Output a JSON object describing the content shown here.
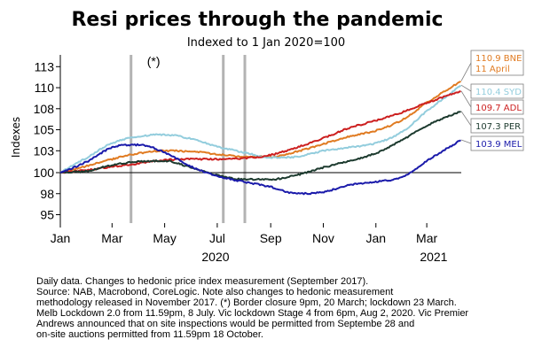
{
  "chart_data": {
    "type": "line",
    "title": "Resi prices through the pandemic",
    "subtitle": "Indexed to 1 Jan 2020=100",
    "ylabel": "Indexes",
    "ylim": [
      94,
      114
    ],
    "yticks": [
      "113",
      "110",
      "108",
      "105",
      "103",
      "100",
      "98",
      "95"
    ],
    "ytick_values": [
      112.6,
      110.1,
      107.6,
      105.1,
      102.6,
      100.0,
      97.5,
      95.0
    ],
    "x_start": "2020-01-01",
    "x_end": "2021-04-10",
    "xticks": [
      {
        "label": "Jan",
        "date": "2020-01-01"
      },
      {
        "label": "Mar",
        "date": "2020-03-01"
      },
      {
        "label": "May",
        "date": "2020-05-01"
      },
      {
        "label": "Jul",
        "date": "2020-07-01"
      },
      {
        "label": "Sep",
        "date": "2020-09-01"
      },
      {
        "label": "Nov",
        "date": "2020-11-01"
      },
      {
        "label": "Jan",
        "date": "2021-01-01"
      },
      {
        "label": "Mar",
        "date": "2021-03-01"
      }
    ],
    "year_labels": [
      {
        "label": "2020",
        "date": "2020-06-29"
      },
      {
        "label": "2021",
        "date": "2021-03-09"
      }
    ],
    "baseline": 100,
    "event_lines": [
      "2020-03-23",
      "2020-07-08",
      "2020-08-02"
    ],
    "event_note": "(*)",
    "series": [
      {
        "name": "BNE",
        "color": "#e07b22",
        "legend": [
          "110.9 BNE",
          "11 April"
        ],
        "points": [
          [
            "2020-01-01",
            100.0
          ],
          [
            "2020-02-01",
            100.8
          ],
          [
            "2020-03-01",
            101.6
          ],
          [
            "2020-04-01",
            102.3
          ],
          [
            "2020-05-01",
            102.6
          ],
          [
            "2020-06-01",
            102.5
          ],
          [
            "2020-07-01",
            102.2
          ],
          [
            "2020-08-01",
            101.9
          ],
          [
            "2020-09-01",
            101.9
          ],
          [
            "2020-10-01",
            102.5
          ],
          [
            "2020-11-01",
            103.4
          ],
          [
            "2020-12-01",
            104.3
          ],
          [
            "2021-01-01",
            105.0
          ],
          [
            "2021-02-01",
            106.3
          ],
          [
            "2021-03-01",
            108.3
          ],
          [
            "2021-04-10",
            110.9
          ]
        ]
      },
      {
        "name": "SYD",
        "color": "#93cddd",
        "legend": [
          "110.4 SYD"
        ],
        "points": [
          [
            "2020-01-01",
            100.0
          ],
          [
            "2020-02-01",
            101.8
          ],
          [
            "2020-03-01",
            103.5
          ],
          [
            "2020-04-01",
            104.3
          ],
          [
            "2020-05-01",
            104.5
          ],
          [
            "2020-06-01",
            104.0
          ],
          [
            "2020-07-01",
            103.1
          ],
          [
            "2020-08-01",
            102.4
          ],
          [
            "2020-09-01",
            101.8
          ],
          [
            "2020-10-01",
            101.9
          ],
          [
            "2020-11-01",
            102.6
          ],
          [
            "2020-12-01",
            103.0
          ],
          [
            "2021-01-01",
            103.5
          ],
          [
            "2021-02-01",
            104.9
          ],
          [
            "2021-03-01",
            107.3
          ],
          [
            "2021-04-10",
            110.4
          ]
        ]
      },
      {
        "name": "ADL",
        "color": "#cc1f1f",
        "legend": [
          "109.7 ADL"
        ],
        "points": [
          [
            "2020-01-01",
            100.0
          ],
          [
            "2020-02-01",
            100.3
          ],
          [
            "2020-03-01",
            100.7
          ],
          [
            "2020-04-01",
            101.1
          ],
          [
            "2020-05-01",
            101.5
          ],
          [
            "2020-06-01",
            101.6
          ],
          [
            "2020-07-01",
            101.6
          ],
          [
            "2020-08-01",
            101.7
          ],
          [
            "2020-09-01",
            102.1
          ],
          [
            "2020-10-01",
            103.0
          ],
          [
            "2020-11-01",
            104.1
          ],
          [
            "2020-12-01",
            105.3
          ],
          [
            "2021-01-01",
            106.2
          ],
          [
            "2021-02-01",
            107.2
          ],
          [
            "2021-03-01",
            108.3
          ],
          [
            "2021-04-10",
            109.7
          ]
        ]
      },
      {
        "name": "PER",
        "color": "#1c3a2e",
        "legend": [
          "107.3 PER"
        ],
        "points": [
          [
            "2020-01-01",
            100.0
          ],
          [
            "2020-02-01",
            100.2
          ],
          [
            "2020-03-01",
            100.9
          ],
          [
            "2020-04-01",
            101.3
          ],
          [
            "2020-05-01",
            101.4
          ],
          [
            "2020-06-01",
            100.6
          ],
          [
            "2020-07-01",
            99.7
          ],
          [
            "2020-08-01",
            99.2
          ],
          [
            "2020-09-01",
            99.2
          ],
          [
            "2020-10-01",
            99.7
          ],
          [
            "2020-11-01",
            100.6
          ],
          [
            "2020-12-01",
            101.4
          ],
          [
            "2021-01-01",
            102.3
          ],
          [
            "2021-02-01",
            103.9
          ],
          [
            "2021-03-01",
            105.6
          ],
          [
            "2021-04-10",
            107.3
          ]
        ]
      },
      {
        "name": "MEL",
        "color": "#1a1aaa",
        "legend": [
          "103.9 MEL"
        ],
        "points": [
          [
            "2020-01-01",
            100.0
          ],
          [
            "2020-02-01",
            101.3
          ],
          [
            "2020-03-01",
            103.0
          ],
          [
            "2020-04-01",
            103.3
          ],
          [
            "2020-05-01",
            102.4
          ],
          [
            "2020-06-01",
            100.7
          ],
          [
            "2020-07-01",
            99.6
          ],
          [
            "2020-08-01",
            98.9
          ],
          [
            "2020-09-01",
            98.3
          ],
          [
            "2020-10-01",
            97.5
          ],
          [
            "2020-11-01",
            97.7
          ],
          [
            "2020-12-01",
            98.5
          ],
          [
            "2021-01-01",
            98.9
          ],
          [
            "2021-02-01",
            99.5
          ],
          [
            "2021-03-01",
            101.4
          ],
          [
            "2021-04-10",
            103.9
          ]
        ]
      }
    ]
  },
  "footnote": [
    "Daily data. Changes to hedonic price index measurement (September 2017).",
    "Source: NAB, Macrobond, CoreLogic. Note also changes to hedonic measurement",
    "methodology released in November 2017. (*) Border closure 9pm, 20 March; lockdown 23 March.",
    "Melb Lockdown 2.0 from 11.59pm, 8 July. Vic lockdown Stage 4 from 6pm, Aug 2, 2020. Vic Premier",
    "Andrews announced that on site inspections would be permitted from Septembe 28 and",
    "on-site auctions permitted from 11.59pm 18 October."
  ]
}
